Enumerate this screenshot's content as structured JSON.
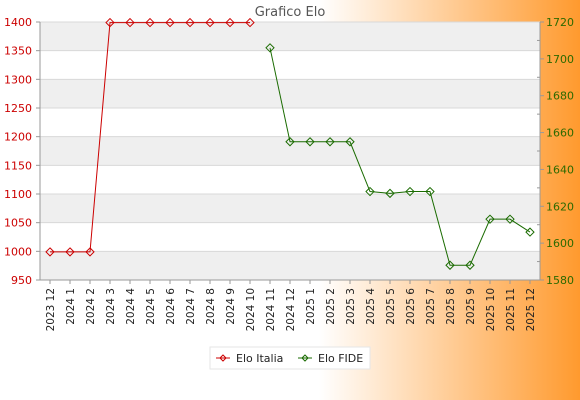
{
  "chart_data": {
    "type": "line",
    "title": "Grafico Elo",
    "categories": [
      "2023 12",
      "2024 1",
      "2024 2",
      "2024 3",
      "2024 4",
      "2024 5",
      "2024 6",
      "2024 7",
      "2024 8",
      "2024 9",
      "2024 10",
      "2024 11",
      "2024 12",
      "2025 1",
      "2025 2",
      "2025 3",
      "2025 4",
      "2025 5",
      "2025 6",
      "2025 7",
      "2025 8",
      "2025 9",
      "2025 10",
      "2025 11",
      "2025 12"
    ],
    "series": [
      {
        "name": "Elo Italia",
        "axis": "left",
        "color": "#cc0000",
        "values": [
          999,
          999,
          999,
          1399,
          1399,
          1399,
          1399,
          1399,
          1399,
          1399,
          1399,
          null,
          null,
          null,
          null,
          null,
          null,
          null,
          null,
          null,
          null,
          null,
          null,
          null,
          null
        ]
      },
      {
        "name": "Elo FIDE",
        "axis": "right",
        "color": "#1a6b00",
        "values": [
          null,
          null,
          null,
          null,
          null,
          null,
          null,
          null,
          null,
          null,
          null,
          1706,
          1655,
          1655,
          1655,
          1655,
          1628,
          1627,
          1628,
          1628,
          1588,
          1588,
          1613,
          1613,
          1606
        ]
      }
    ],
    "left_axis": {
      "ylim": [
        950,
        1400
      ],
      "ticks": [
        950,
        1000,
        1050,
        1100,
        1150,
        1200,
        1250,
        1300,
        1350,
        1400
      ]
    },
    "right_axis": {
      "ylim": [
        1580,
        1720
      ],
      "ticks": [
        1580,
        1600,
        1620,
        1640,
        1660,
        1680,
        1700,
        1720
      ]
    },
    "grid": true,
    "legend_position": "bottom-center",
    "colors": {
      "left_axis": "#cc0000",
      "right_axis": "#2d6a00",
      "background_gradient_end": "#ff9a2e"
    }
  }
}
